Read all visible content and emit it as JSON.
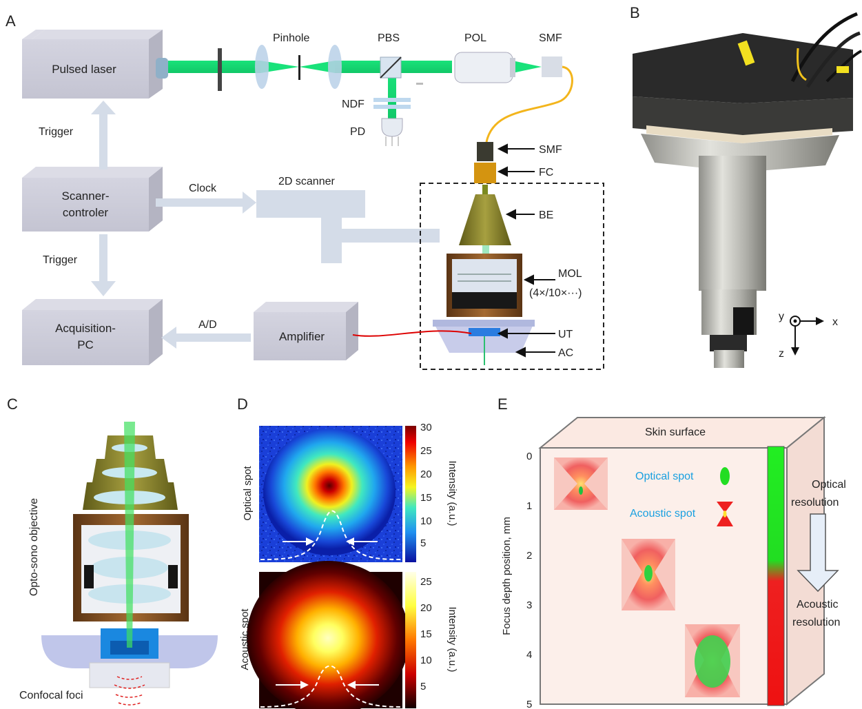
{
  "panels": {
    "a": "A",
    "b": "B",
    "c": "C",
    "d": "D",
    "e": "E"
  },
  "panel_a": {
    "boxes": {
      "laser": "Pulsed laser",
      "scanner_line1": "Scanner-",
      "scanner_line2": "controler",
      "acq_line1": "Acquisition-",
      "acq_line2": "PC",
      "amplifier": "Amplifier"
    },
    "signals": {
      "trigger_top": "Trigger",
      "trigger_bottom": "Trigger",
      "clock": "Clock",
      "ad": "A/D",
      "scanner2d": "2D scanner"
    },
    "optics": {
      "pinhole": "Pinhole",
      "pbs": "PBS",
      "pol": "POL",
      "smf_top": "SMF",
      "ndf": "NDF",
      "pd": "PD"
    },
    "probe_labels": {
      "smf": "SMF",
      "fc": "FC",
      "be": "BE",
      "mol": "MOL",
      "mol_sub": "(4×/10×···)",
      "ut": "UT",
      "ac": "AC"
    }
  },
  "panel_b": {
    "axis_y": "y",
    "axis_x": "x",
    "axis_z": "z"
  },
  "panel_c": {
    "side_label": "Opto-sono objective",
    "foci_label": "Confocal foci"
  },
  "panel_d": {
    "optical": {
      "label": "Optical spot",
      "colorbar_title": "Intensity (a.u.)",
      "ticks": [
        "30",
        "25",
        "20",
        "15",
        "10",
        "5"
      ]
    },
    "acoustic": {
      "label": "Acoustic spot",
      "colorbar_title": "Intensity (a.u.)",
      "ticks": [
        "25",
        "20",
        "15",
        "10",
        "5"
      ]
    }
  },
  "panel_e": {
    "top_label": "Skin surface",
    "y_axis_label": "Focus depth position, mm",
    "y_ticks": [
      "0",
      "1",
      "2",
      "3",
      "4",
      "5"
    ],
    "legend_optical": "Optical spot",
    "legend_acoustic": "Acoustic spot",
    "optical_res_line1": "Optical",
    "optical_res_line2": "resolution",
    "acoustic_res_line1": "Acoustic",
    "acoustic_res_line2": "resolution",
    "colors": {
      "optical": "#22dd22",
      "acoustic": "#ee1111",
      "legend_text": "#1aa0e0"
    }
  }
}
